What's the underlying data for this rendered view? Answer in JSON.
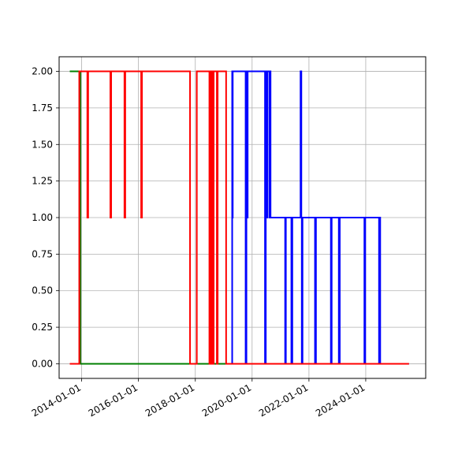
{
  "chart_data": {
    "type": "line",
    "title": "",
    "xlabel": "",
    "ylabel": "",
    "x_axis": "date",
    "xlim": [
      "2013-03-17",
      "2026-02-10"
    ],
    "ylim": [
      -0.1,
      2.1
    ],
    "grid": true,
    "legend": "none",
    "yticks": [
      {
        "value": 0.0,
        "label": "0.00"
      },
      {
        "value": 0.25,
        "label": "0.25"
      },
      {
        "value": 0.5,
        "label": "0.50"
      },
      {
        "value": 0.75,
        "label": "0.75"
      },
      {
        "value": 1.0,
        "label": "1.00"
      },
      {
        "value": 1.25,
        "label": "1.25"
      },
      {
        "value": 1.5,
        "label": "1.50"
      },
      {
        "value": 1.75,
        "label": "1.75"
      },
      {
        "value": 2.0,
        "label": "2.00"
      }
    ],
    "xticks": [
      {
        "value": "2014-01-01",
        "label": "2014-01-01"
      },
      {
        "value": "2016-01-01",
        "label": "2016-01-01"
      },
      {
        "value": "2018-01-01",
        "label": "2018-01-01"
      },
      {
        "value": "2020-01-01",
        "label": "2020-01-01"
      },
      {
        "value": "2022-01-01",
        "label": "2022-01-01"
      },
      {
        "value": "2024-01-01",
        "label": "2024-01-01"
      }
    ],
    "series": [
      {
        "color": "#0000ff",
        "points": [
          [
            "2019-04-01",
            0
          ],
          [
            "2019-04-20",
            0
          ],
          [
            "2019-04-20",
            2
          ],
          [
            "2019-04-25",
            2
          ],
          [
            "2019-04-25",
            1
          ],
          [
            "2019-04-27",
            1
          ],
          [
            "2019-04-27",
            2
          ],
          [
            "2019-10-10",
            2
          ],
          [
            "2019-10-10",
            0
          ],
          [
            "2019-10-20",
            0
          ],
          [
            "2019-10-20",
            2
          ],
          [
            "2019-10-25",
            2
          ],
          [
            "2019-10-25",
            1
          ],
          [
            "2019-11-05",
            1
          ],
          [
            "2019-11-05",
            2
          ],
          [
            "2020-06-15",
            2
          ],
          [
            "2020-06-15",
            0
          ],
          [
            "2020-06-25",
            0
          ],
          [
            "2020-06-25",
            2
          ],
          [
            "2020-07-10",
            2
          ],
          [
            "2020-07-10",
            1
          ],
          [
            "2020-07-15",
            1
          ],
          [
            "2020-07-15",
            2
          ],
          [
            "2020-08-10",
            2
          ],
          [
            "2020-08-10",
            1
          ],
          [
            "2020-08-15",
            1
          ],
          [
            "2020-08-15",
            2
          ],
          [
            "2020-08-25",
            2
          ],
          [
            "2020-08-25",
            1
          ],
          [
            "2021-09-15",
            1
          ],
          [
            "2021-09-15",
            2
          ],
          [
            "2021-09-25",
            2
          ],
          [
            "2021-09-25",
            1
          ],
          [
            "2021-10-01",
            1
          ],
          [
            "2021-10-01",
            0
          ],
          [
            "2021-10-10",
            0
          ],
          [
            "2021-10-10",
            1
          ],
          [
            "2021-03-01",
            1
          ],
          [
            "2021-03-01",
            0
          ],
          [
            "2021-03-10",
            0
          ],
          [
            "2021-03-10",
            1
          ],
          [
            "2021-05-20",
            1
          ],
          [
            "2021-05-20",
            0
          ],
          [
            "2021-06-01",
            0
          ],
          [
            "2021-06-01",
            1
          ],
          [
            "2022-03-20",
            1
          ],
          [
            "2022-03-20",
            0
          ],
          [
            "2022-04-01",
            0
          ],
          [
            "2022-04-01",
            1
          ],
          [
            "2022-10-10",
            1
          ],
          [
            "2022-10-10",
            0
          ],
          [
            "2022-10-20",
            0
          ],
          [
            "2022-10-20",
            1
          ],
          [
            "2023-01-20",
            1
          ],
          [
            "2023-01-20",
            0
          ],
          [
            "2023-02-01",
            0
          ],
          [
            "2023-02-01",
            1
          ],
          [
            "2023-12-15",
            1
          ],
          [
            "2023-12-15",
            0
          ],
          [
            "2023-12-25",
            0
          ],
          [
            "2023-12-25",
            1
          ],
          [
            "2024-06-20",
            1
          ],
          [
            "2024-06-20",
            0
          ],
          [
            "2024-07-01",
            0
          ],
          [
            "2024-07-01",
            1
          ],
          [
            "2024-07-05",
            1
          ],
          [
            "2024-07-05",
            0
          ],
          [
            "2025-07-10",
            0
          ]
        ]
      },
      {
        "color": "#008000",
        "points": [
          [
            "2013-08-01",
            2
          ],
          [
            "2013-12-15",
            2
          ],
          [
            "2013-12-15",
            0
          ],
          [
            "2019-05-01",
            0
          ]
        ]
      },
      {
        "color": "#ff0000",
        "points": [
          [
            "2013-08-01",
            0
          ],
          [
            "2013-12-01",
            0
          ],
          [
            "2013-12-01",
            2
          ],
          [
            "2014-03-15",
            2
          ],
          [
            "2014-03-15",
            1
          ],
          [
            "2014-03-25",
            1
          ],
          [
            "2014-03-25",
            2
          ],
          [
            "2015-01-05",
            2
          ],
          [
            "2015-01-05",
            1
          ],
          [
            "2015-01-15",
            1
          ],
          [
            "2015-01-15",
            2
          ],
          [
            "2015-07-05",
            2
          ],
          [
            "2015-07-05",
            1
          ],
          [
            "2015-07-15",
            1
          ],
          [
            "2015-07-15",
            2
          ],
          [
            "2016-02-05",
            2
          ],
          [
            "2016-02-05",
            1
          ],
          [
            "2016-02-15",
            1
          ],
          [
            "2016-02-15",
            2
          ],
          [
            "2017-10-25",
            2
          ],
          [
            "2017-10-25",
            0
          ],
          [
            "2018-01-20",
            0
          ],
          [
            "2018-01-20",
            2
          ],
          [
            "2018-07-01",
            2
          ],
          [
            "2018-07-01",
            0
          ],
          [
            "2018-07-10",
            0
          ],
          [
            "2018-07-10",
            2
          ],
          [
            "2018-07-25",
            2
          ],
          [
            "2018-07-25",
            0
          ],
          [
            "2018-08-01",
            0
          ],
          [
            "2018-08-01",
            2
          ],
          [
            "2018-08-15",
            2
          ],
          [
            "2018-08-15",
            0
          ],
          [
            "2018-08-25",
            0
          ],
          [
            "2018-08-25",
            2
          ],
          [
            "2018-10-05",
            2
          ],
          [
            "2018-10-05",
            0
          ],
          [
            "2018-10-15",
            0
          ],
          [
            "2018-10-15",
            2
          ],
          [
            "2019-02-01",
            2
          ],
          [
            "2019-02-01",
            0
          ],
          [
            "2025-07-10",
            0
          ]
        ]
      }
    ]
  }
}
